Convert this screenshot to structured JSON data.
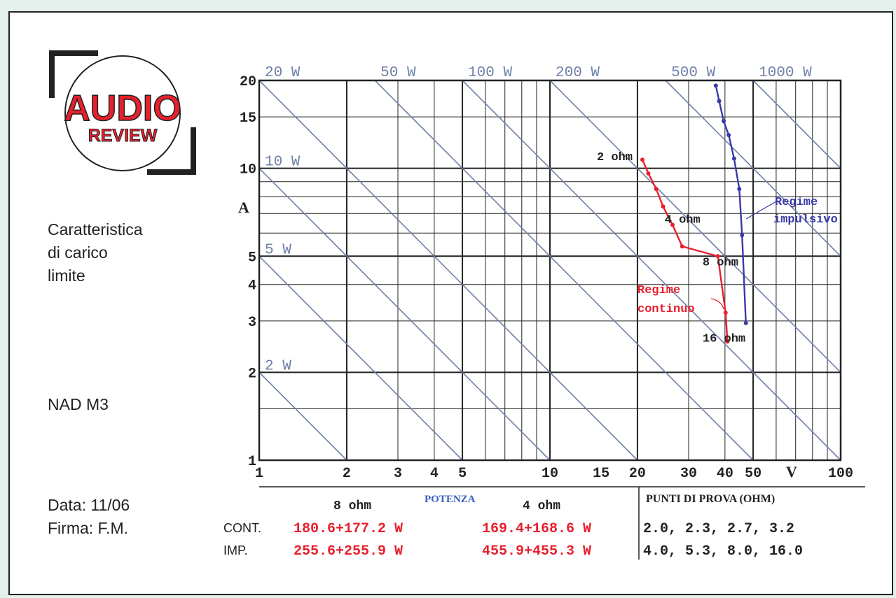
{
  "logo": {
    "line1": "AUDIO",
    "line2": "REVIEW"
  },
  "side_labels": {
    "title_line1": "Caratteristica",
    "title_line2": "di carico",
    "title_line3": "limite",
    "model": "NAD M3",
    "date": "Data: 11/06",
    "signature": "Firma: F.M."
  },
  "table": {
    "potenza_label": "POTENZA",
    "col_8ohm": "8 ohm",
    "col_4ohm": "4 ohm",
    "punti_header": "PUNTI DI PROVA (OHM)",
    "rows": [
      {
        "label": "CONT.",
        "v8": "180.6+177.2 W",
        "v4": "169.4+168.6 W",
        "punti": "2.0, 2.3, 2.7, 3.2"
      },
      {
        "label": "IMP.",
        "v8": "255.6+255.9 W",
        "v4": "455.9+455.3 W",
        "punti": "4.0, 5.3, 8.0, 16.0"
      }
    ]
  },
  "colors": {
    "continuous": "#e8202e",
    "impulsive": "#3a3aa8",
    "power_lines": "#6f7fa8",
    "background": "#e3f0ec"
  },
  "chart_data": {
    "type": "line",
    "x_scale": "log",
    "y_scale": "log",
    "xlabel": "V",
    "ylabel": "A",
    "xlim": [
      1,
      100
    ],
    "ylim": [
      1,
      20
    ],
    "x_ticks": [
      {
        "v": 1,
        "label": "1"
      },
      {
        "v": 2,
        "label": "2"
      },
      {
        "v": 3,
        "label": "3"
      },
      {
        "v": 4,
        "label": "4"
      },
      {
        "v": 5,
        "label": "5"
      },
      {
        "v": 10,
        "label": "10"
      },
      {
        "v": 15,
        "label": "15"
      },
      {
        "v": 20,
        "label": "20"
      },
      {
        "v": 30,
        "label": "30"
      },
      {
        "v": 40,
        "label": "40"
      },
      {
        "v": 50,
        "label": "50"
      },
      {
        "v": 100,
        "label": "100"
      }
    ],
    "y_ticks": [
      {
        "v": 1,
        "label": "1"
      },
      {
        "v": 2,
        "label": "2"
      },
      {
        "v": 3,
        "label": "3"
      },
      {
        "v": 4,
        "label": "4"
      },
      {
        "v": 5,
        "label": "5"
      },
      {
        "v": 10,
        "label": "10"
      },
      {
        "v": 15,
        "label": "15"
      },
      {
        "v": 20,
        "label": "20"
      }
    ],
    "grid": true,
    "power_lines": [
      {
        "watts": 2,
        "label": "2 W",
        "label_pos": "left"
      },
      {
        "watts": 5,
        "label": "5 W",
        "label_pos": "left"
      },
      {
        "watts": 10,
        "label": "10 W",
        "label_pos": "left"
      },
      {
        "watts": 20,
        "label": "20 W",
        "label_pos": "top"
      },
      {
        "watts": 50,
        "label": "50 W",
        "label_pos": "top"
      },
      {
        "watts": 100,
        "label": "100 W",
        "label_pos": "top"
      },
      {
        "watts": 200,
        "label": "200 W",
        "label_pos": "top"
      },
      {
        "watts": 500,
        "label": "500 W",
        "label_pos": "top"
      },
      {
        "watts": 1000,
        "label": "1000 W",
        "label_pos": "top"
      },
      {
        "watts": 2000,
        "label": "",
        "label_pos": "none"
      }
    ],
    "series": [
      {
        "name": "Regime continuo",
        "points": [
          [
            20.8,
            10.7
          ],
          [
            21.8,
            9.6
          ],
          [
            23.2,
            8.5
          ],
          [
            24.5,
            7.4
          ],
          [
            26.4,
            6.4
          ],
          [
            28.5,
            5.4
          ],
          [
            37.8,
            5.0
          ],
          [
            40.2,
            3.2
          ],
          [
            40.8,
            2.55
          ]
        ]
      },
      {
        "name": "Regime impulsivo",
        "points": [
          [
            37.2,
            19.2
          ],
          [
            38.2,
            17.0
          ],
          [
            39.6,
            14.5
          ],
          [
            41.2,
            13.0
          ],
          [
            43.0,
            10.8
          ],
          [
            44.8,
            8.5
          ],
          [
            45.8,
            5.9
          ],
          [
            47.2,
            2.95
          ]
        ]
      }
    ],
    "annotations": [
      {
        "text": "2 ohm",
        "x": 14.5,
        "y": 10.65
      },
      {
        "text": "4 ohm",
        "x": 24.8,
        "y": 6.5
      },
      {
        "text": "8 ohm",
        "x": 33.5,
        "y": 4.65
      },
      {
        "text": "16 ohm",
        "x": 33.5,
        "y": 2.55
      }
    ]
  }
}
